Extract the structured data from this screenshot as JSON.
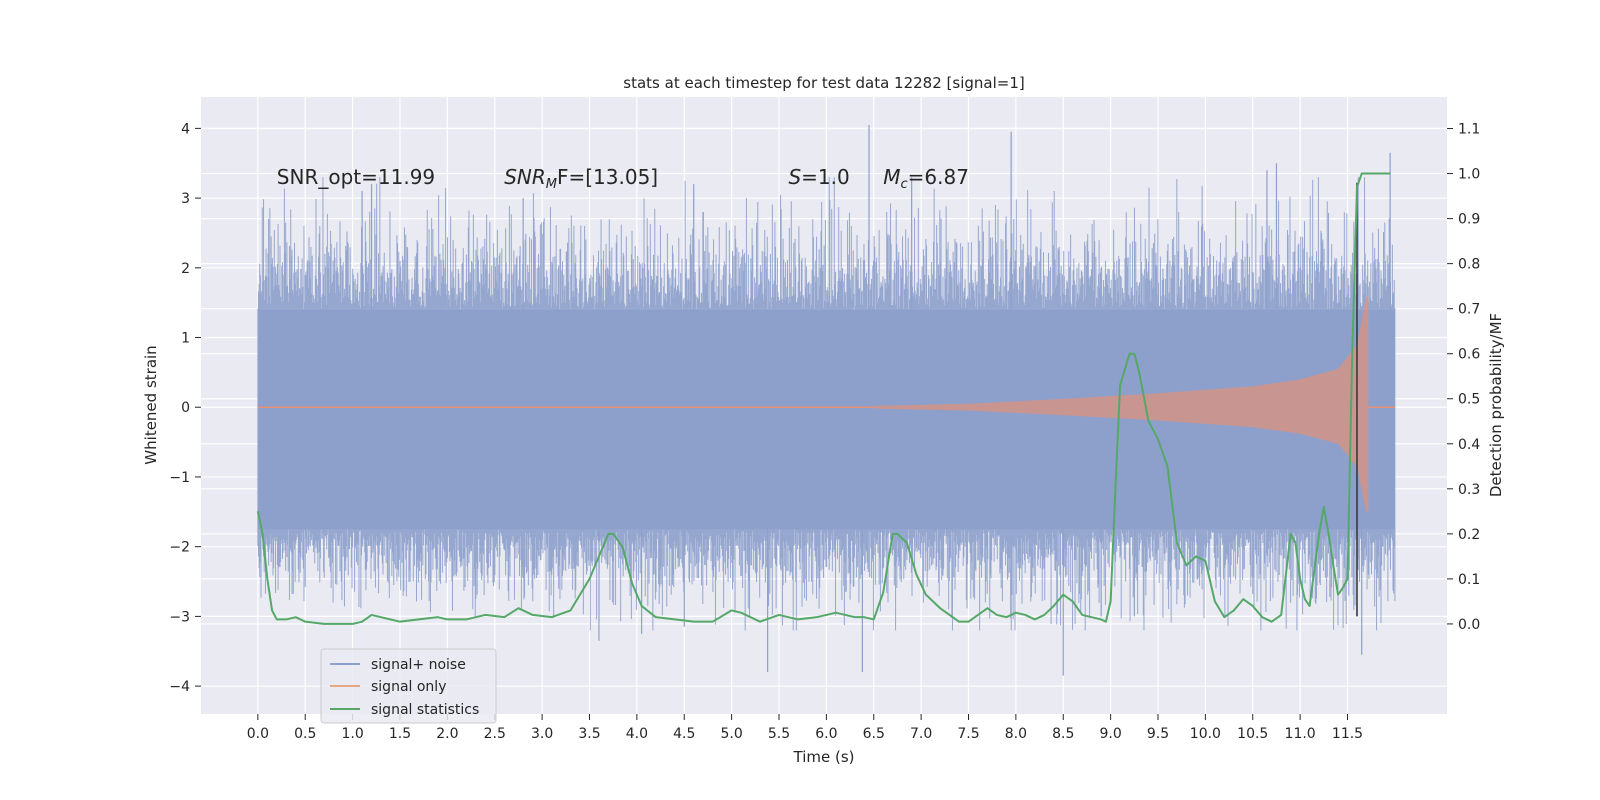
{
  "chart_data": {
    "type": "line",
    "title": "stats at each timestep for test data 12282 [signal=1]",
    "xlabel": "Time (s)",
    "ylabel_left": "Whitened strain",
    "ylabel_right": "Detection probability/MF",
    "xlim": [
      -0.6,
      12.55
    ],
    "ylim_left": [
      -4.4,
      4.45
    ],
    "ylim_right": [
      -0.2,
      1.17
    ],
    "x_ticks": [
      0.0,
      0.5,
      1.0,
      1.5,
      2.0,
      2.5,
      3.0,
      3.5,
      4.0,
      4.5,
      5.0,
      5.5,
      6.0,
      6.5,
      7.0,
      7.5,
      8.0,
      8.5,
      9.0,
      9.5,
      10.0,
      10.5,
      11.0,
      11.5
    ],
    "x_tick_labels": [
      "0.0",
      "0.5",
      "1.0",
      "1.5",
      "2.0",
      "2.5",
      "3.0",
      "3.5",
      "4.0",
      "4.5",
      "5.0",
      "5.5",
      "6.0",
      "6.5",
      "7.0",
      "7.5",
      "8.0",
      "8.5",
      "9.0",
      "9.5",
      "10.0",
      "10.5",
      "11.0",
      "11.5"
    ],
    "y_left_ticks": [
      -4,
      -3,
      -2,
      -1,
      0,
      1,
      2,
      3,
      4
    ],
    "y_left_tick_labels": [
      "−4",
      "−3",
      "−2",
      "−1",
      "0",
      "1",
      "2",
      "3",
      "4"
    ],
    "y_right_ticks": [
      0.0,
      0.1,
      0.2,
      0.3,
      0.4,
      0.5,
      0.6,
      0.7,
      0.8,
      0.9,
      1.0,
      1.1
    ],
    "y_right_tick_labels": [
      "0.0",
      "0.1",
      "0.2",
      "0.3",
      "0.4",
      "0.5",
      "0.6",
      "0.7",
      "0.8",
      "0.9",
      "1.0",
      "1.1"
    ],
    "annotations": [
      {
        "id": "snr-opt",
        "text": "SNR_opt=11.99",
        "x": 0.2,
        "y": 3.2
      },
      {
        "id": "snr-mf",
        "text": "SNR",
        "sub": "M",
        "rest": "F=[13.05]",
        "x": 2.6,
        "y": 3.2,
        "italic": true
      },
      {
        "id": "s-val",
        "text": "S",
        "rest": "=1.0",
        "x": 5.6,
        "y": 3.2,
        "italic": true
      },
      {
        "id": "mc-val",
        "text": "M",
        "sub": "c",
        "rest": "=6.87",
        "x": 6.6,
        "y": 3.2,
        "italic": true
      }
    ],
    "series": [
      {
        "name": "signal+ noise",
        "color": "#8da0cb",
        "kind": "noise",
        "x_range": [
          0.0,
          12.0
        ],
        "typical_envelope": [
          -1.75,
          1.4
        ],
        "spikes": [
          {
            "x": 6.45,
            "y": 4.05
          },
          {
            "x": 7.95,
            "y": 3.95
          },
          {
            "x": 11.95,
            "y": 3.65
          },
          {
            "x": 10.75,
            "y": 3.5
          },
          {
            "x": 11.65,
            "y": -3.55
          },
          {
            "x": 8.5,
            "y": -3.85
          },
          {
            "x": 5.38,
            "y": -3.8
          },
          {
            "x": 6.38,
            "y": -3.8
          },
          {
            "x": 3.6,
            "y": -3.35
          },
          {
            "x": 4.05,
            "y": -3.25
          },
          {
            "x": 4.5,
            "y": -3.15
          },
          {
            "x": 1.1,
            "y": 3.1
          },
          {
            "x": 1.2,
            "y": 3.2
          },
          {
            "x": 2.8,
            "y": 3.0
          },
          {
            "x": 4.6,
            "y": 3.2
          },
          {
            "x": 6.9,
            "y": 3.3
          },
          {
            "x": 8.9,
            "y": -3.0
          },
          {
            "x": 9.25,
            "y": -3.0
          },
          {
            "x": 10.65,
            "y": 3.4
          },
          {
            "x": 11.6,
            "y": -3.0
          }
        ]
      },
      {
        "name": "signal only",
        "color": "#fc8d62",
        "kind": "chirp",
        "start": 6.5,
        "peak_time": 11.72,
        "end": 12.0,
        "amplitude_at": [
          {
            "t": 6.5,
            "a": 0.02
          },
          {
            "t": 7.5,
            "a": 0.05
          },
          {
            "t": 8.5,
            "a": 0.12
          },
          {
            "t": 9.5,
            "a": 0.2
          },
          {
            "t": 10.5,
            "a": 0.3
          },
          {
            "t": 11.0,
            "a": 0.4
          },
          {
            "t": 11.4,
            "a": 0.55
          },
          {
            "t": 11.6,
            "a": 0.9
          },
          {
            "t": 11.7,
            "a": 1.6
          }
        ]
      },
      {
        "name": "signal statistics",
        "color": "#55a868",
        "kind": "line",
        "axis": "right",
        "x": [
          0.0,
          0.05,
          0.1,
          0.15,
          0.2,
          0.3,
          0.4,
          0.5,
          0.7,
          1.0,
          1.1,
          1.2,
          1.3,
          1.5,
          1.7,
          1.9,
          2.0,
          2.2,
          2.4,
          2.6,
          2.75,
          2.9,
          3.1,
          3.3,
          3.5,
          3.6,
          3.7,
          3.75,
          3.85,
          3.95,
          4.05,
          4.2,
          4.4,
          4.6,
          4.8,
          5.0,
          5.1,
          5.3,
          5.5,
          5.7,
          5.9,
          6.1,
          6.3,
          6.4,
          6.5,
          6.6,
          6.7,
          6.75,
          6.85,
          6.95,
          7.05,
          7.2,
          7.4,
          7.5,
          7.6,
          7.7,
          7.8,
          7.9,
          8.0,
          8.1,
          8.2,
          8.3,
          8.4,
          8.5,
          8.6,
          8.7,
          8.8,
          8.9,
          8.95,
          9.0,
          9.05,
          9.1,
          9.2,
          9.25,
          9.3,
          9.4,
          9.5,
          9.6,
          9.7,
          9.8,
          9.9,
          10.0,
          10.1,
          10.2,
          10.3,
          10.4,
          10.5,
          10.6,
          10.7,
          10.8,
          10.9,
          10.95,
          11.0,
          11.05,
          11.1,
          11.15,
          11.2,
          11.25,
          11.3,
          11.35,
          11.4,
          11.45,
          11.5,
          11.55,
          11.6,
          11.65,
          11.7,
          11.8,
          11.9,
          11.95
        ],
        "values": [
          0.25,
          0.2,
          0.1,
          0.03,
          0.01,
          0.01,
          0.015,
          0.005,
          0.0,
          0.0,
          0.005,
          0.02,
          0.015,
          0.005,
          0.01,
          0.015,
          0.01,
          0.01,
          0.02,
          0.015,
          0.035,
          0.02,
          0.015,
          0.03,
          0.1,
          0.15,
          0.2,
          0.2,
          0.17,
          0.09,
          0.04,
          0.015,
          0.01,
          0.005,
          0.005,
          0.03,
          0.025,
          0.005,
          0.02,
          0.01,
          0.015,
          0.025,
          0.015,
          0.015,
          0.01,
          0.07,
          0.2,
          0.2,
          0.18,
          0.11,
          0.065,
          0.035,
          0.005,
          0.005,
          0.02,
          0.035,
          0.02,
          0.015,
          0.025,
          0.02,
          0.01,
          0.02,
          0.04,
          0.065,
          0.05,
          0.02,
          0.015,
          0.01,
          0.005,
          0.05,
          0.3,
          0.53,
          0.6,
          0.6,
          0.56,
          0.45,
          0.41,
          0.35,
          0.18,
          0.13,
          0.15,
          0.14,
          0.05,
          0.015,
          0.03,
          0.055,
          0.04,
          0.015,
          0.005,
          0.02,
          0.2,
          0.18,
          0.1,
          0.055,
          0.04,
          0.12,
          0.2,
          0.26,
          0.2,
          0.13,
          0.065,
          0.08,
          0.1,
          0.6,
          0.97,
          1.0,
          1.0,
          1.0,
          1.0,
          1.0
        ]
      }
    ],
    "vertical_marker": {
      "x": 11.6,
      "color": "#333333"
    },
    "legend": {
      "position": "lower-left",
      "entries": [
        {
          "label": "signal+ noise",
          "color": "#8da0cb"
        },
        {
          "label": "signal only",
          "color": "#e8a783"
        },
        {
          "label": "signal statistics",
          "color": "#55a868"
        }
      ]
    },
    "style": {
      "axes_background": "#eaeaf2",
      "grid_color": "#ffffff",
      "tick_color": "#262626"
    }
  }
}
